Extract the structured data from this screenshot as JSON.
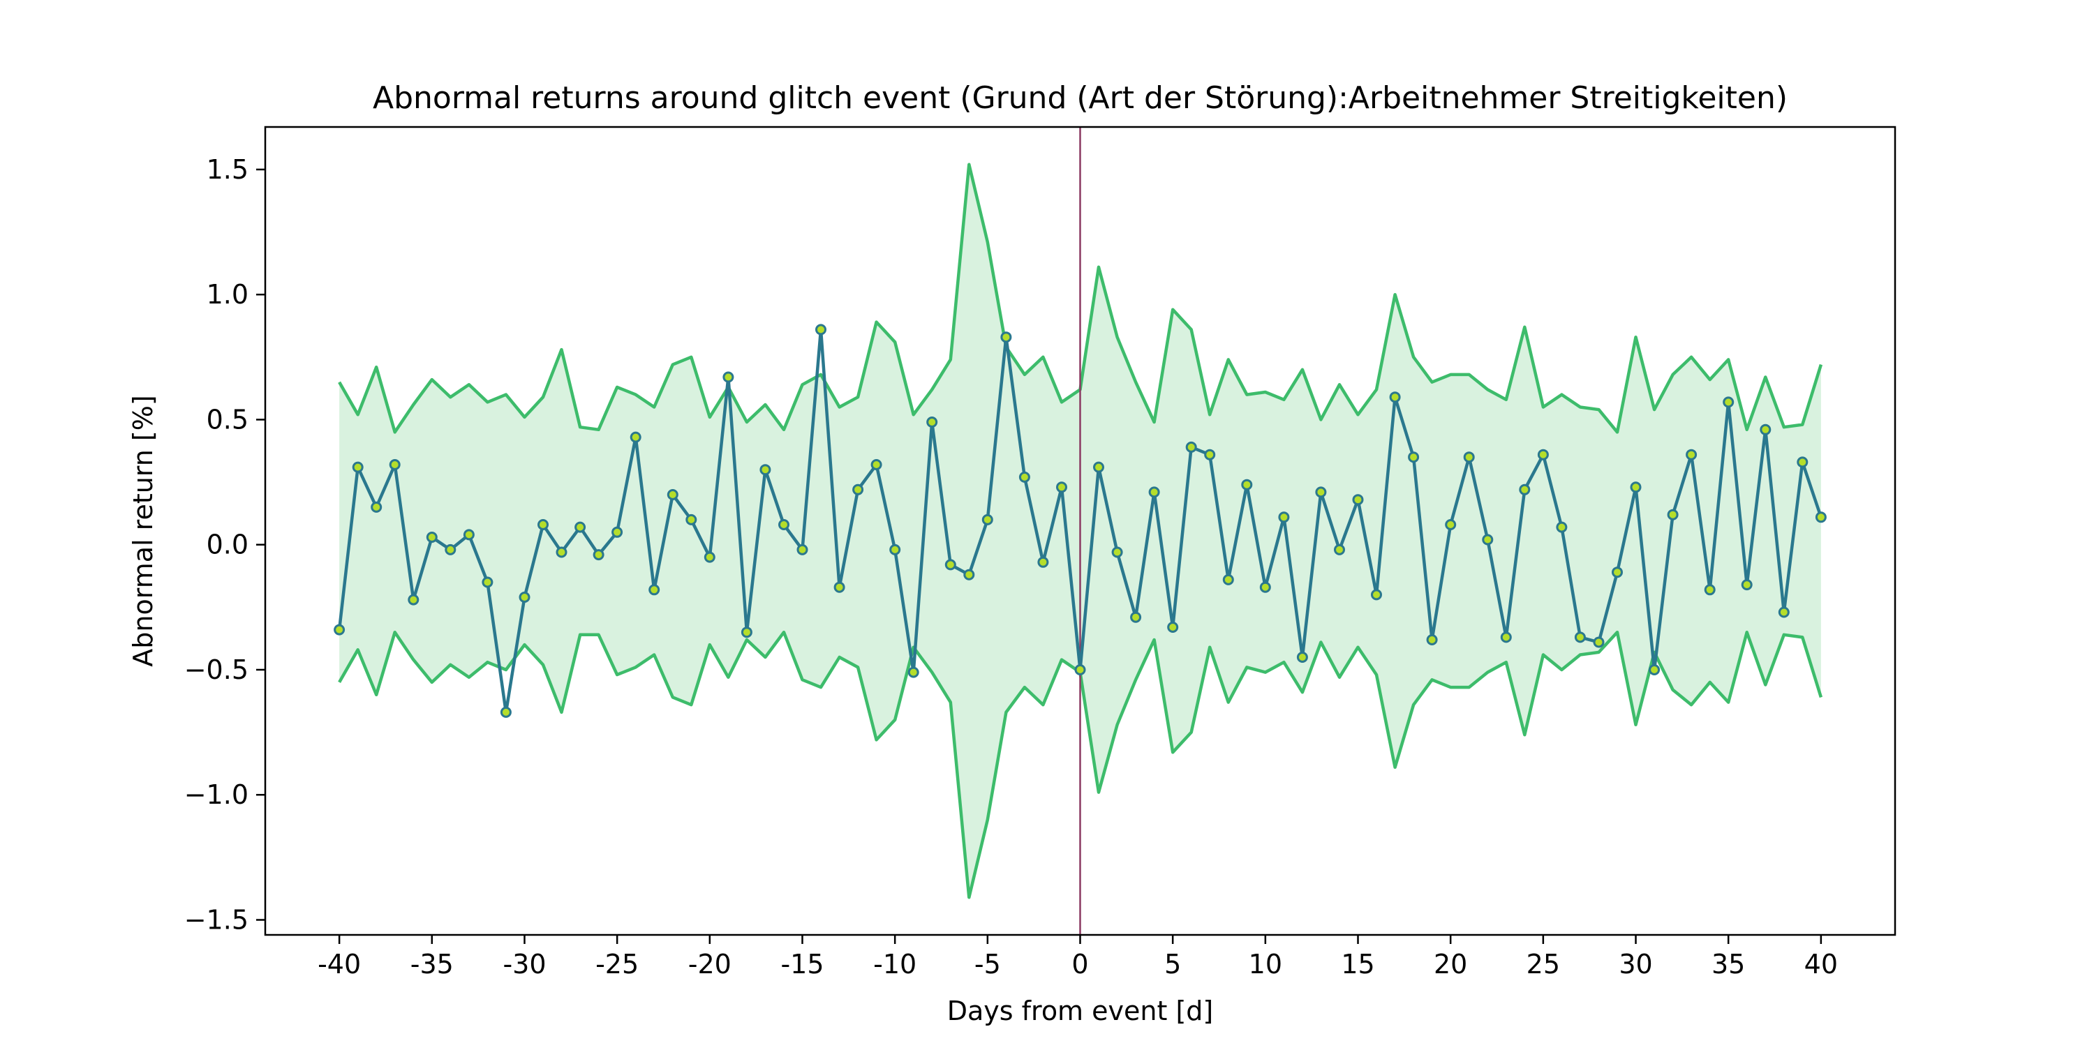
{
  "chart_data": {
    "type": "line",
    "title": "Abnormal returns around glitch event (Grund (Art der Störung):Arbeitnehmer Streitigkeiten)",
    "xlabel": "Days from event [d]",
    "ylabel": "Abnormal return [%]",
    "xlim": [
      -44,
      44
    ],
    "ylim": [
      -1.56,
      1.67
    ],
    "xticks": [
      -40,
      -35,
      -30,
      -25,
      -20,
      -15,
      -10,
      -5,
      0,
      5,
      10,
      15,
      20,
      25,
      30,
      35,
      40
    ],
    "yticks": [
      1.5,
      1.0,
      0.5,
      0.0,
      -0.5,
      -1.0,
      -1.5
    ],
    "ytick_labels": [
      "1.5",
      "1.0",
      "0.5",
      "0.0",
      "−0.5",
      "−1.0",
      "−1.5"
    ],
    "grid": false,
    "event_line_x": 0,
    "x": [
      -40,
      -39,
      -38,
      -37,
      -36,
      -35,
      -34,
      -33,
      -32,
      -31,
      -30,
      -29,
      -28,
      -27,
      -26,
      -25,
      -24,
      -23,
      -22,
      -21,
      -20,
      -19,
      -18,
      -17,
      -16,
      -15,
      -14,
      -13,
      -12,
      -11,
      -10,
      -9,
      -8,
      -7,
      -6,
      -5,
      -4,
      -3,
      -2,
      -1,
      0,
      1,
      2,
      3,
      4,
      5,
      6,
      7,
      8,
      9,
      10,
      11,
      12,
      13,
      14,
      15,
      16,
      17,
      18,
      19,
      20,
      21,
      22,
      23,
      24,
      25,
      26,
      27,
      28,
      29,
      30,
      31,
      32,
      33,
      34,
      35,
      36,
      37,
      38,
      39,
      40
    ],
    "series": [
      {
        "role": "abnormal return",
        "values": [
          -0.34,
          0.31,
          0.15,
          0.32,
          -0.22,
          0.03,
          -0.02,
          0.04,
          -0.15,
          -0.67,
          -0.21,
          0.08,
          -0.03,
          0.07,
          -0.04,
          0.05,
          0.43,
          -0.18,
          0.2,
          0.1,
          -0.05,
          0.67,
          -0.35,
          0.3,
          0.08,
          -0.02,
          0.86,
          -0.17,
          0.22,
          0.32,
          -0.02,
          -0.51,
          0.49,
          -0.08,
          -0.12,
          0.1,
          0.83,
          0.27,
          -0.07,
          0.23,
          -0.5,
          0.31,
          -0.03,
          -0.29,
          0.21,
          -0.33,
          0.39,
          0.36,
          -0.14,
          0.24,
          -0.17,
          0.11,
          -0.45,
          0.21,
          -0.02,
          0.18,
          -0.2,
          0.59,
          0.35,
          -0.38,
          0.08,
          0.35,
          0.02,
          -0.37,
          0.22,
          0.36,
          0.07,
          -0.37,
          -0.39,
          -0.11,
          0.23,
          -0.5,
          0.12,
          0.36,
          -0.18,
          0.57,
          -0.16,
          0.46,
          -0.27,
          0.33,
          0.11
        ]
      },
      {
        "role": "upper band",
        "values": [
          0.65,
          0.52,
          0.71,
          0.45,
          0.56,
          0.66,
          0.59,
          0.64,
          0.57,
          0.6,
          0.51,
          0.59,
          0.78,
          0.47,
          0.46,
          0.63,
          0.6,
          0.55,
          0.72,
          0.75,
          0.51,
          0.63,
          0.49,
          0.56,
          0.46,
          0.64,
          0.68,
          0.55,
          0.59,
          0.89,
          0.81,
          0.52,
          0.62,
          0.74,
          1.52,
          1.21,
          0.79,
          0.68,
          0.75,
          0.57,
          0.62,
          1.11,
          0.83,
          0.65,
          0.49,
          0.94,
          0.86,
          0.52,
          0.74,
          0.6,
          0.61,
          0.58,
          0.7,
          0.5,
          0.64,
          0.52,
          0.62,
          1.0,
          0.75,
          0.65,
          0.68,
          0.68,
          0.62,
          0.58,
          0.87,
          0.55,
          0.6,
          0.55,
          0.54,
          0.45,
          0.83,
          0.54,
          0.68,
          0.75,
          0.66,
          0.74,
          0.46,
          0.67,
          0.47,
          0.48,
          0.72
        ]
      },
      {
        "role": "lower band",
        "values": [
          -0.55,
          -0.42,
          -0.6,
          -0.35,
          -0.46,
          -0.55,
          -0.48,
          -0.53,
          -0.47,
          -0.5,
          -0.4,
          -0.48,
          -0.67,
          -0.36,
          -0.36,
          -0.52,
          -0.49,
          -0.44,
          -0.61,
          -0.64,
          -0.4,
          -0.53,
          -0.38,
          -0.45,
          -0.35,
          -0.54,
          -0.57,
          -0.45,
          -0.49,
          -0.78,
          -0.7,
          -0.41,
          -0.51,
          -0.63,
          -1.41,
          -1.1,
          -0.67,
          -0.57,
          -0.64,
          -0.46,
          -0.51,
          -0.99,
          -0.72,
          -0.54,
          -0.38,
          -0.83,
          -0.75,
          -0.41,
          -0.63,
          -0.49,
          -0.51,
          -0.47,
          -0.59,
          -0.39,
          -0.53,
          -0.41,
          -0.52,
          -0.89,
          -0.64,
          -0.54,
          -0.57,
          -0.57,
          -0.51,
          -0.47,
          -0.76,
          -0.44,
          -0.5,
          -0.44,
          -0.43,
          -0.35,
          -0.72,
          -0.43,
          -0.58,
          -0.64,
          -0.55,
          -0.63,
          -0.35,
          -0.56,
          -0.36,
          -0.37,
          -0.61
        ]
      }
    ],
    "colors": {
      "line": "#2a788e",
      "marker_fill": "#b5de2b",
      "band_line": "#3dbc6b",
      "band_fill": "#d9f2df",
      "event_line": "#8b3a62"
    }
  }
}
